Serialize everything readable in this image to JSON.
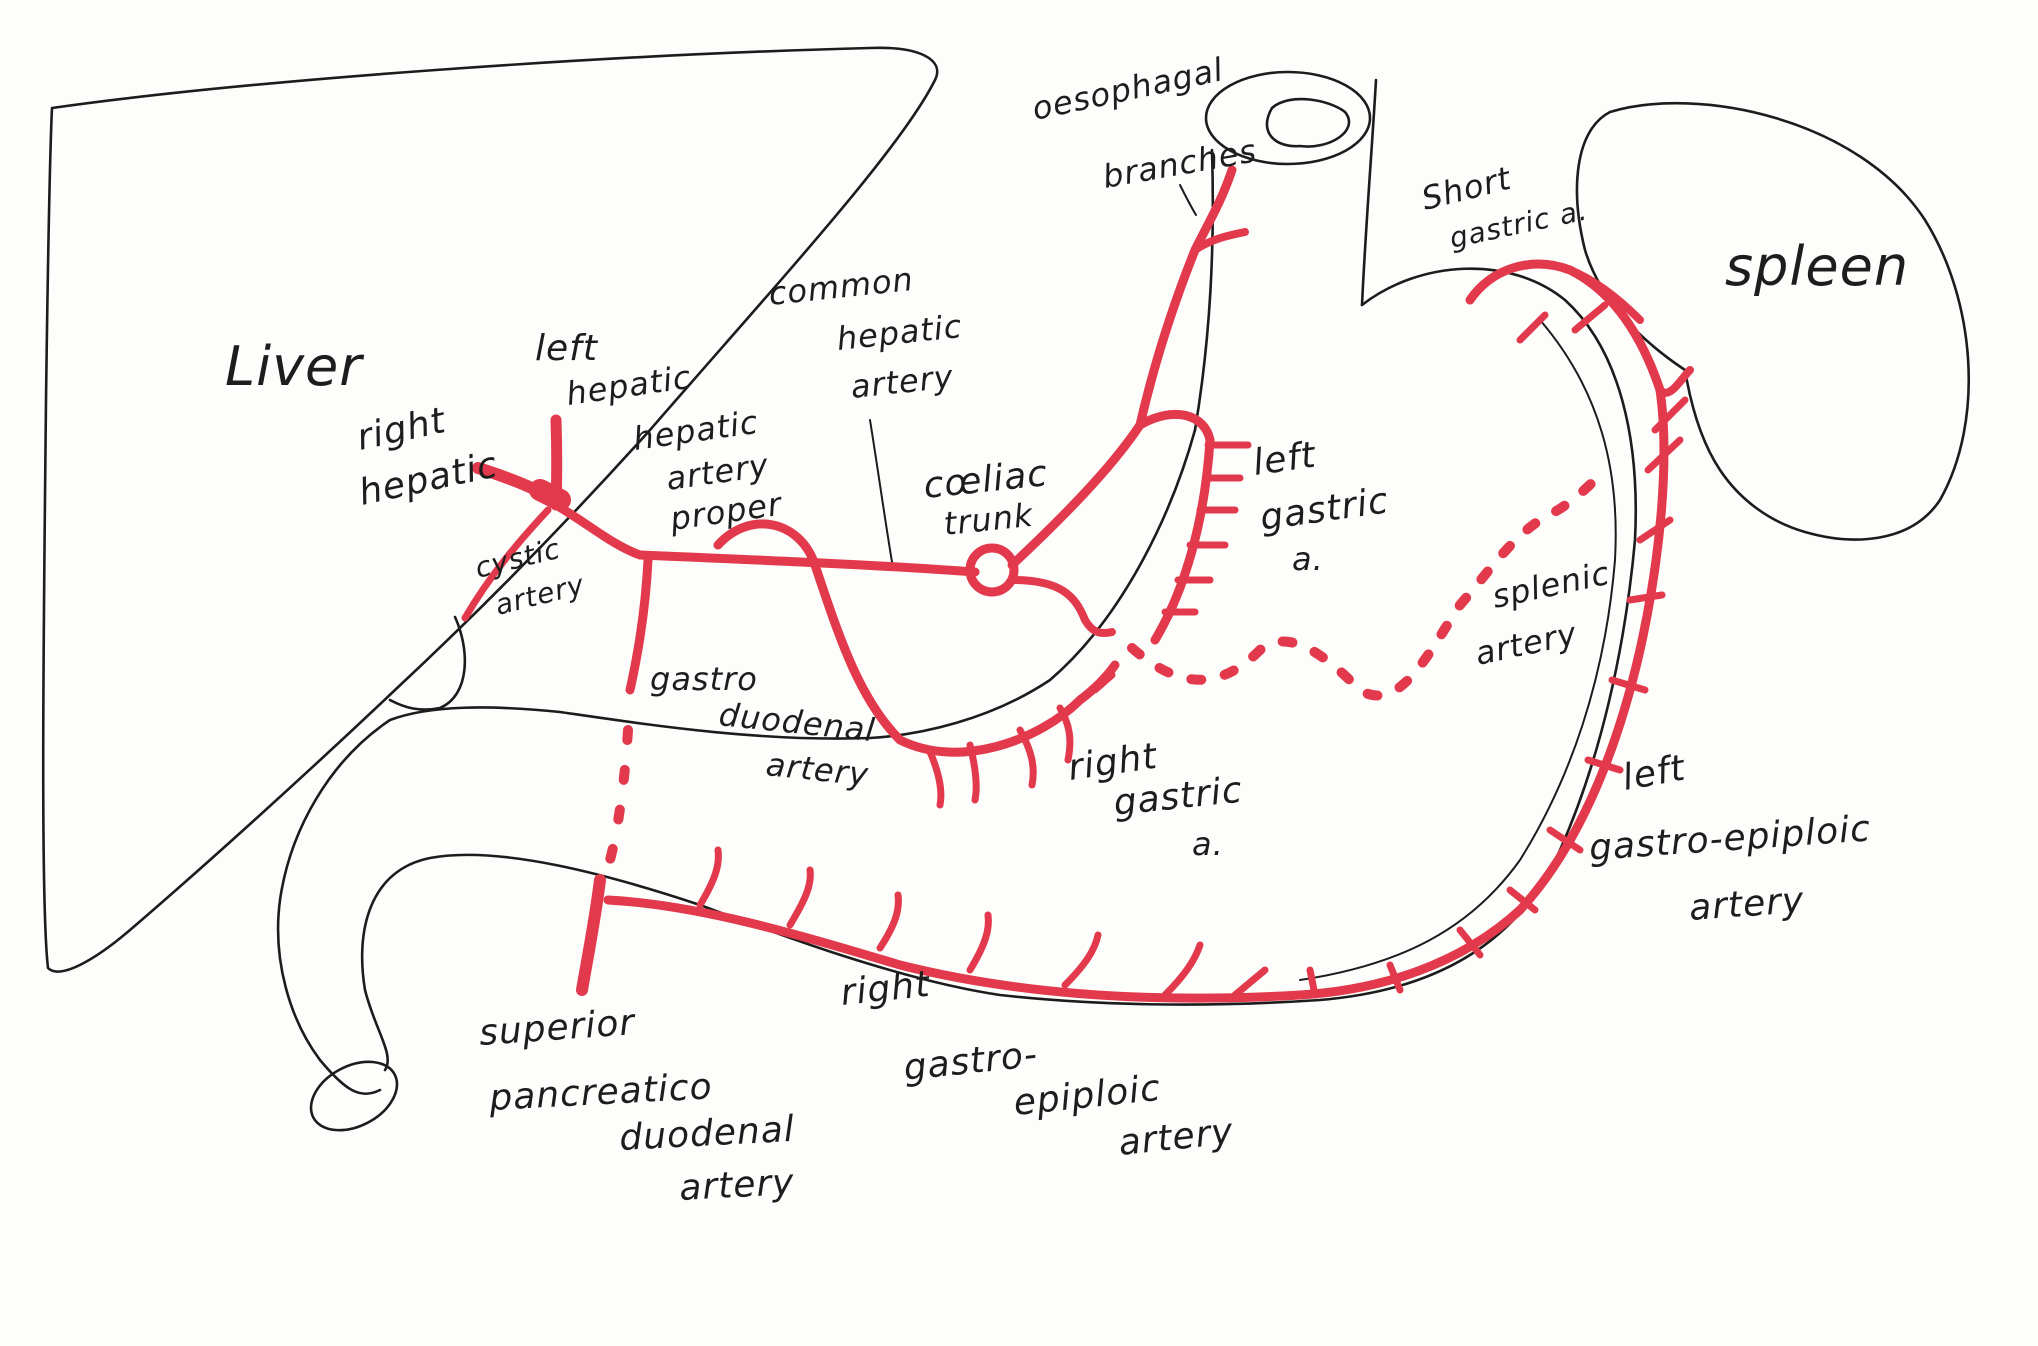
{
  "colors": {
    "background": "#fdfdfb",
    "outline": "#1c1c1c",
    "artery": "#e23a4c",
    "artery_fill": "#e8566a"
  },
  "labels": {
    "liver": "Liver",
    "spleen": "spleen",
    "left_hepatic": [
      "left",
      "hepatic"
    ],
    "right_hepatic": [
      "right",
      "hepatic"
    ],
    "cystic_artery": [
      "cystic",
      "artery"
    ],
    "hepatic_artery_proper": [
      "hepatic",
      "artery",
      "proper"
    ],
    "common_hepatic_artery": [
      "common",
      "hepatic",
      "artery"
    ],
    "coeliac_trunk": [
      "cœliac",
      "trunk"
    ],
    "oesophageal_branches": [
      "oesophagal",
      "branches"
    ],
    "short_gastric": [
      "Short",
      "gastric a."
    ],
    "left_gastric": [
      "left",
      "gastric",
      "a."
    ],
    "splenic_artery": [
      "splenic",
      "artery"
    ],
    "gastroduodenal_artery": [
      "gastro",
      "duodenal",
      "artery"
    ],
    "right_gastric": [
      "right",
      "gastric",
      "a."
    ],
    "left_gastro_epiploic": [
      "left",
      "gastro-epiploic",
      "artery"
    ],
    "right_gastro_epiploic": [
      "right",
      "gastro-",
      "epiploic",
      "artery"
    ],
    "superior_pancreaticoduodenal": [
      "superior",
      "pancreatico",
      "duodenal",
      "artery"
    ]
  }
}
